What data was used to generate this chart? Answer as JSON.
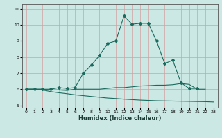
{
  "xlabel": "Humidex (Indice chaleur)",
  "bg_color": "#cce8e4",
  "grid_color": "#d4a0a0",
  "line_color": "#1a6b5e",
  "xlim": [
    -0.5,
    23.5
  ],
  "ylim": [
    4.85,
    11.3
  ],
  "yticks": [
    5,
    6,
    7,
    8,
    9,
    10,
    11
  ],
  "xticks": [
    0,
    1,
    2,
    3,
    4,
    5,
    6,
    7,
    8,
    9,
    10,
    11,
    12,
    13,
    14,
    15,
    16,
    17,
    18,
    19,
    20,
    21,
    22,
    23
  ],
  "line1_x": [
    0,
    1,
    2,
    3,
    4,
    5,
    6,
    7,
    8,
    9,
    10,
    11,
    12,
    13,
    14,
    15,
    16,
    17,
    18,
    19,
    20,
    21
  ],
  "line1_y": [
    6.0,
    6.0,
    6.0,
    6.0,
    6.1,
    6.05,
    6.1,
    7.0,
    7.5,
    8.1,
    8.85,
    9.0,
    10.55,
    10.05,
    10.1,
    10.1,
    9.0,
    7.6,
    7.8,
    6.4,
    6.05,
    6.05
  ],
  "line2_x": [
    0,
    1,
    2,
    3,
    4,
    5,
    6,
    7,
    8,
    9,
    10,
    11,
    12,
    13,
    14,
    15,
    16,
    17,
    18,
    19,
    20,
    21,
    22
  ],
  "line2_y": [
    6.0,
    6.0,
    6.0,
    5.95,
    5.95,
    5.92,
    6.0,
    6.0,
    6.0,
    6.0,
    6.05,
    6.1,
    6.1,
    6.15,
    6.2,
    6.22,
    6.25,
    6.25,
    6.28,
    6.35,
    6.3,
    6.0,
    6.0
  ],
  "line3_x": [
    0,
    1,
    2,
    3,
    4,
    5,
    6,
    7,
    8,
    9,
    10,
    11,
    12,
    13,
    14,
    15,
    16,
    17,
    18,
    19,
    20,
    21,
    22,
    23
  ],
  "line3_y": [
    6.0,
    6.0,
    5.95,
    5.85,
    5.78,
    5.72,
    5.65,
    5.6,
    5.55,
    5.5,
    5.45,
    5.42,
    5.38,
    5.35,
    5.32,
    5.3,
    5.28,
    5.27,
    5.26,
    5.25,
    5.24,
    5.23,
    5.22,
    5.2
  ]
}
